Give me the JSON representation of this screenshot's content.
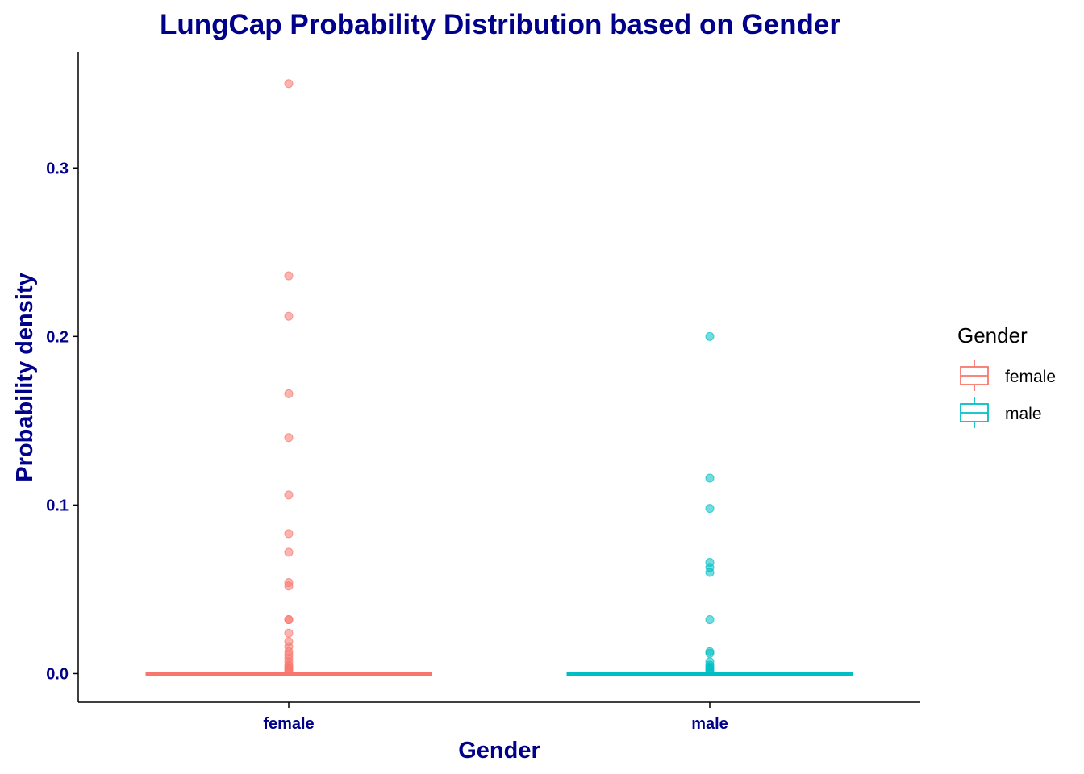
{
  "chart_data": {
    "type": "box",
    "title": "LungCap Probability Distribution based on Gender",
    "xlabel": "Gender",
    "ylabel": "Probability density",
    "categories": [
      "female",
      "male"
    ],
    "ylim": [
      -0.017,
      0.369
    ],
    "y_ticks": [
      0.0,
      0.1,
      0.2,
      0.3
    ],
    "y_tick_labels": [
      "0.0",
      "0.1",
      "0.2",
      "0.3"
    ],
    "grid": false,
    "legend": {
      "title": "Gender",
      "position": "right",
      "entries": [
        "female",
        "male"
      ]
    },
    "colors": {
      "female": "#F8766D",
      "male": "#00BFC4",
      "text": "#00008B"
    },
    "series": [
      {
        "name": "female",
        "box": {
          "min": 0.0,
          "q1": 0.0,
          "median": 0.0,
          "q3": 0.0,
          "max": 0.0
        },
        "outliers": [
          0.35,
          0.236,
          0.212,
          0.166,
          0.14,
          0.106,
          0.083,
          0.072,
          0.054,
          0.052,
          0.032,
          0.032,
          0.024,
          0.019,
          0.016,
          0.013,
          0.011,
          0.009,
          0.007,
          0.005,
          0.004,
          0.003,
          0.002,
          0.001
        ]
      },
      {
        "name": "male",
        "box": {
          "min": 0.0,
          "q1": 0.0,
          "median": 0.0,
          "q3": 0.0,
          "max": 0.0
        },
        "outliers": [
          0.2,
          0.116,
          0.098,
          0.066,
          0.063,
          0.06,
          0.032,
          0.013,
          0.012,
          0.007,
          0.005,
          0.004,
          0.003,
          0.002,
          0.001
        ]
      }
    ]
  }
}
